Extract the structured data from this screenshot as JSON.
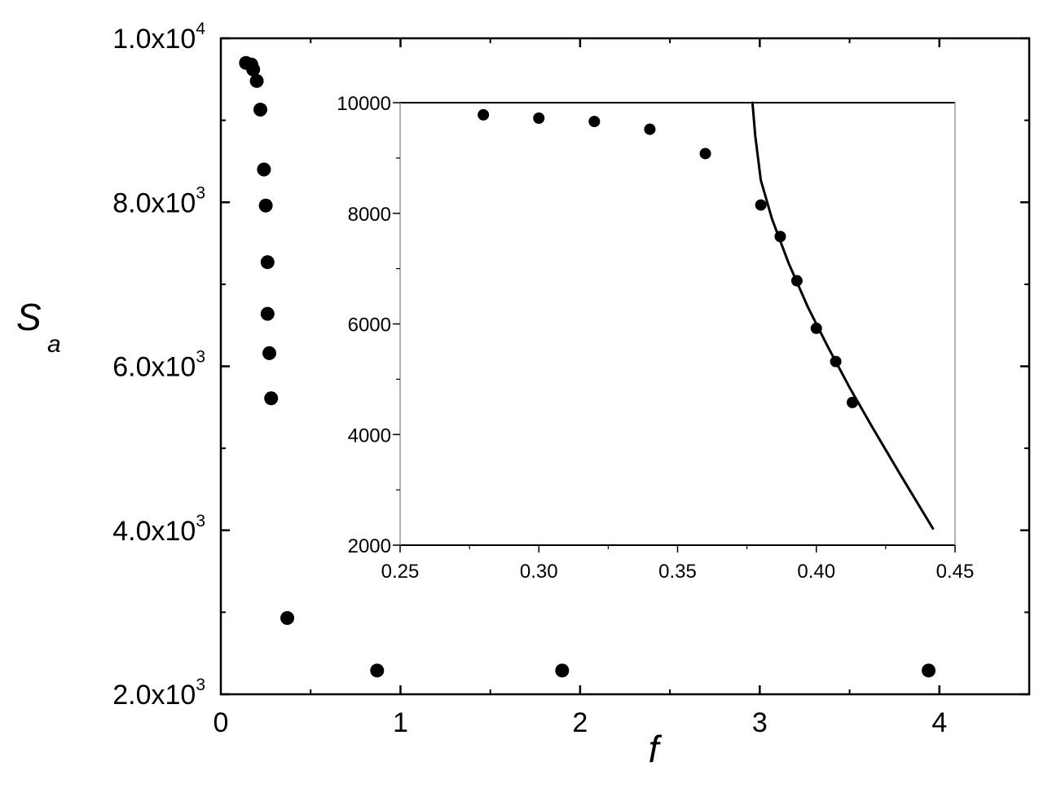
{
  "chart_data": [
    {
      "type": "scatter",
      "title": "",
      "xlabel": "f",
      "ylabel": "S",
      "ylabel_subscript": "a",
      "xlim": [
        0,
        4.5
      ],
      "ylim": [
        2000,
        10000
      ],
      "x_ticks": [
        0,
        1,
        2,
        3,
        4
      ],
      "x_tick_labels": [
        "0",
        "1",
        "2",
        "3",
        "4"
      ],
      "y_ticks": [
        2000,
        4000,
        6000,
        8000,
        10000
      ],
      "y_tick_labels": [
        {
          "mantissa": "2.0x10",
          "exponent": "3"
        },
        {
          "mantissa": "4.0x10",
          "exponent": "3"
        },
        {
          "mantissa": "6.0x10",
          "exponent": "3"
        },
        {
          "mantissa": "8.0x10",
          "exponent": "3"
        },
        {
          "mantissa": "1.0x10",
          "exponent": "4"
        }
      ],
      "grid": false,
      "legend": "none",
      "marker_color": "#000000",
      "points": [
        {
          "x": 0.14,
          "y": 9700
        },
        {
          "x": 0.17,
          "y": 9680
        },
        {
          "x": 0.18,
          "y": 9620
        },
        {
          "x": 0.2,
          "y": 9480
        },
        {
          "x": 0.22,
          "y": 9130
        },
        {
          "x": 0.24,
          "y": 8400
        },
        {
          "x": 0.25,
          "y": 7960
        },
        {
          "x": 0.26,
          "y": 7270
        },
        {
          "x": 0.26,
          "y": 6640
        },
        {
          "x": 0.27,
          "y": 6160
        },
        {
          "x": 0.28,
          "y": 5610
        },
        {
          "x": 0.37,
          "y": 2930
        },
        {
          "x": 0.87,
          "y": 2290
        },
        {
          "x": 1.9,
          "y": 2290
        },
        {
          "x": 3.94,
          "y": 2290
        }
      ]
    },
    {
      "type": "scatter",
      "title": "",
      "xlabel": "",
      "ylabel": "",
      "xlim": [
        0.25,
        0.45
      ],
      "ylim": [
        2000,
        10000
      ],
      "x_ticks": [
        0.25,
        0.3,
        0.35,
        0.4,
        0.45
      ],
      "x_tick_labels": [
        "0.25",
        "0.30",
        "0.35",
        "0.40",
        "0.45"
      ],
      "y_ticks": [
        2000,
        4000,
        6000,
        8000,
        10000
      ],
      "y_tick_labels": [
        "2000",
        "4000",
        "6000",
        "8000",
        "10000"
      ],
      "grid": false,
      "legend": "none",
      "marker_color": "#000000",
      "points": [
        {
          "x": 0.28,
          "y": 9780
        },
        {
          "x": 0.3,
          "y": 9720
        },
        {
          "x": 0.32,
          "y": 9660
        },
        {
          "x": 0.34,
          "y": 9520
        },
        {
          "x": 0.36,
          "y": 9080
        },
        {
          "x": 0.38,
          "y": 8150
        },
        {
          "x": 0.387,
          "y": 7580
        },
        {
          "x": 0.393,
          "y": 6780
        },
        {
          "x": 0.4,
          "y": 5920
        },
        {
          "x": 0.407,
          "y": 5320
        },
        {
          "x": 0.413,
          "y": 4580
        }
      ],
      "fit_curve": {
        "color": "#000000",
        "points": [
          {
            "x": 0.377,
            "y": 10000
          },
          {
            "x": 0.378,
            "y": 9400
          },
          {
            "x": 0.38,
            "y": 8600
          },
          {
            "x": 0.384,
            "y": 7900
          },
          {
            "x": 0.39,
            "y": 7100
          },
          {
            "x": 0.397,
            "y": 6300
          },
          {
            "x": 0.404,
            "y": 5600
          },
          {
            "x": 0.412,
            "y": 4850
          },
          {
            "x": 0.42,
            "y": 4150
          },
          {
            "x": 0.43,
            "y": 3300
          },
          {
            "x": 0.442,
            "y": 2300
          }
        ]
      }
    }
  ]
}
